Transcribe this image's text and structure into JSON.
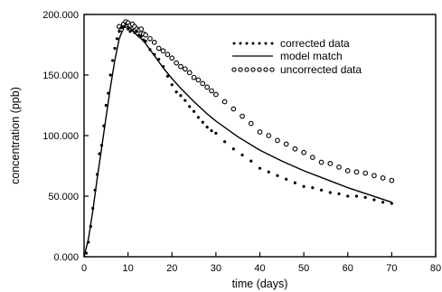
{
  "chart_data": {
    "type": "scatter",
    "title": "",
    "xlabel": "time (days)",
    "ylabel": "concentration (ppb)",
    "xlim": [
      0,
      80
    ],
    "ylim": [
      0,
      200000
    ],
    "x_ticks": [
      0,
      10,
      20,
      30,
      40,
      50,
      60,
      70,
      80
    ],
    "x_tick_labels": [
      "0",
      "10",
      "20",
      "30",
      "40",
      "50",
      "60",
      "70",
      "80"
    ],
    "y_ticks": [
      0,
      50000,
      100000,
      150000,
      200000
    ],
    "y_tick_labels": [
      "0.000",
      "50.000",
      "100.000",
      "150.000",
      "200.000"
    ],
    "grid": false,
    "legend_position": "top-right",
    "series": [
      {
        "name": "corrected data",
        "style": "small-dots",
        "x": [
          0.5,
          1,
          1.5,
          2,
          2.5,
          3,
          3.5,
          4,
          4.5,
          5,
          5.5,
          6,
          6.5,
          7,
          7.5,
          8,
          8.5,
          9,
          9.5,
          10,
          10.5,
          11,
          11.5,
          12,
          12.5,
          13,
          13.5,
          14,
          15,
          16,
          17,
          18,
          19,
          20,
          21,
          22,
          23,
          24,
          25,
          26,
          27,
          28,
          29,
          30,
          32,
          34,
          36,
          38,
          40,
          42,
          44,
          46,
          48,
          50,
          52,
          54,
          56,
          58,
          60,
          62,
          64,
          66,
          68,
          70
        ],
        "y": [
          3000,
          12000,
          25000,
          40000,
          55000,
          68000,
          85000,
          92000,
          108000,
          125000,
          135000,
          150000,
          162000,
          172000,
          180000,
          186000,
          189000,
          190000,
          192000,
          188000,
          186000,
          187000,
          185000,
          186000,
          183000,
          182000,
          179000,
          178000,
          171000,
          167000,
          163000,
          157000,
          149000,
          142000,
          136000,
          133000,
          129000,
          124000,
          120000,
          115000,
          111000,
          107000,
          104000,
          102000,
          95000,
          89000,
          84000,
          79000,
          73000,
          70000,
          67000,
          64000,
          61000,
          58000,
          57000,
          55000,
          53000,
          52000,
          50000,
          50000,
          49000,
          47000,
          45000,
          44000
        ]
      },
      {
        "name": "model match",
        "style": "line",
        "x": [
          0,
          1,
          2,
          3,
          4,
          5,
          6,
          7,
          8,
          9,
          10,
          11,
          12,
          13,
          14,
          15,
          16,
          18,
          20,
          22,
          25,
          28,
          30,
          35,
          40,
          45,
          50,
          55,
          60,
          65,
          70
        ],
        "y": [
          0,
          15000,
          38000,
          65000,
          90000,
          115000,
          140000,
          162000,
          180000,
          189000,
          190000,
          187000,
          183000,
          180000,
          176000,
          171000,
          166000,
          156000,
          147000,
          139000,
          128000,
          118000,
          112000,
          99000,
          88000,
          79000,
          71000,
          64000,
          57000,
          51000,
          45000
        ]
      },
      {
        "name": "uncorrected data",
        "style": "open-circles",
        "x": [
          8,
          8.5,
          9,
          9.5,
          10,
          10.5,
          11,
          11.5,
          12,
          12.5,
          13,
          13.5,
          14,
          15,
          16,
          17,
          18,
          19,
          20,
          21,
          22,
          23,
          24,
          25,
          26,
          27,
          28,
          29,
          30,
          32,
          34,
          36,
          38,
          40,
          42,
          44,
          46,
          48,
          50,
          52,
          54,
          56,
          58,
          60,
          62,
          64,
          66,
          68,
          70
        ],
        "y": [
          190000,
          188000,
          192000,
          194000,
          193000,
          191000,
          192000,
          190000,
          188000,
          187000,
          188000,
          184000,
          183000,
          180000,
          177000,
          172000,
          170000,
          167000,
          164000,
          160000,
          157000,
          155000,
          152000,
          148000,
          146000,
          143000,
          140000,
          137000,
          134000,
          128000,
          122000,
          116000,
          110000,
          103000,
          100000,
          96000,
          93000,
          89000,
          86000,
          82000,
          78000,
          77000,
          74000,
          71000,
          70000,
          69000,
          67000,
          65000,
          63000
        ]
      }
    ]
  }
}
